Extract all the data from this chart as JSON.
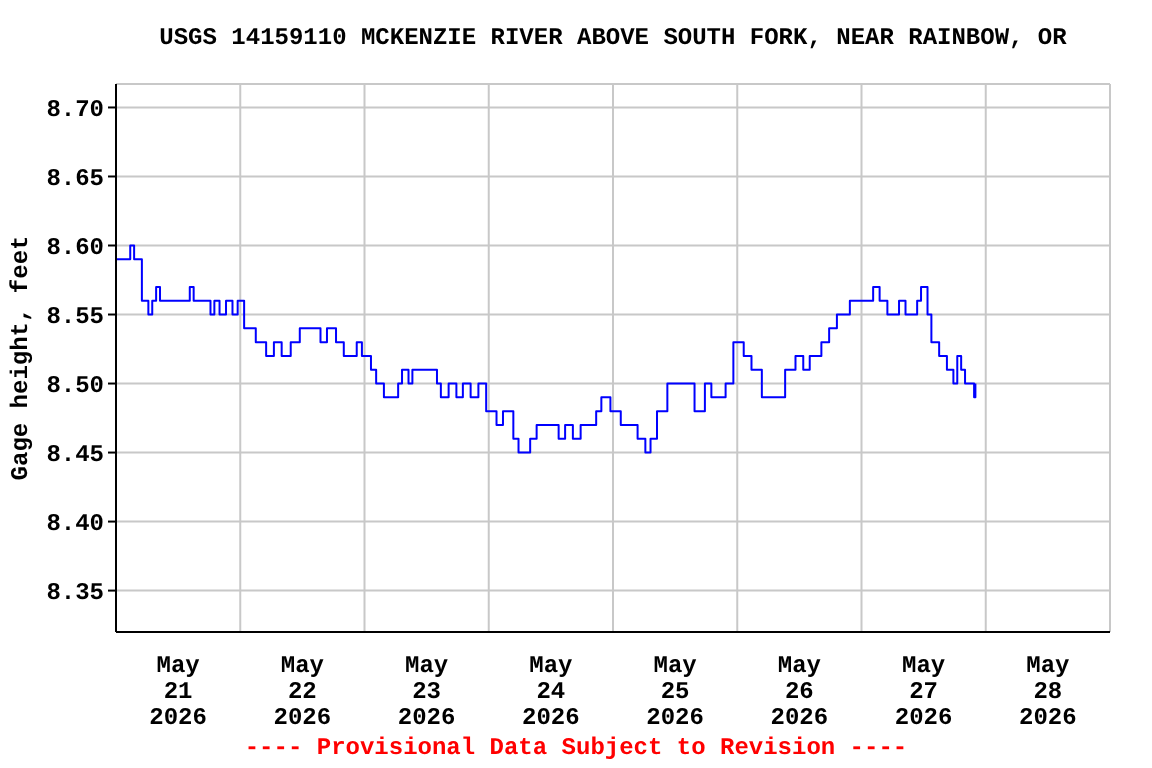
{
  "chart_data": {
    "type": "step",
    "title": "USGS 14159110 MCKENZIE RIVER ABOVE SOUTH FORK, NEAR RAINBOW, OR",
    "ylabel": "Gage height, feet",
    "annotations": [
      "---- Provisional Data Subject to Revision ----"
    ],
    "x": [
      "2026-05-21T00:00",
      "2026-05-21T02:45",
      "2026-05-21T03:30",
      "2026-05-21T05:00",
      "2026-05-21T06:15",
      "2026-05-21T07:00",
      "2026-05-21T07:45",
      "2026-05-21T08:30",
      "2026-05-21T14:15",
      "2026-05-21T15:00",
      "2026-05-21T18:15",
      "2026-05-21T19:00",
      "2026-05-21T20:00",
      "2026-05-21T21:15",
      "2026-05-21T22:30",
      "2026-05-21T23:30",
      "2026-05-22T00:45",
      "2026-05-22T03:00",
      "2026-05-22T05:00",
      "2026-05-22T06:30",
      "2026-05-22T08:00",
      "2026-05-22T09:45",
      "2026-05-22T11:30",
      "2026-05-22T15:30",
      "2026-05-22T16:45",
      "2026-05-22T18:30",
      "2026-05-22T20:00",
      "2026-05-22T22:30",
      "2026-05-22T23:30",
      "2026-05-23T01:15",
      "2026-05-23T02:15",
      "2026-05-23T03:45",
      "2026-05-23T06:30",
      "2026-05-23T07:15",
      "2026-05-23T08:30",
      "2026-05-23T09:15",
      "2026-05-23T14:00",
      "2026-05-23T14:45",
      "2026-05-23T16:15",
      "2026-05-23T17:45",
      "2026-05-23T19:00",
      "2026-05-23T20:30",
      "2026-05-23T22:00",
      "2026-05-23T23:30",
      "2026-05-24T01:30",
      "2026-05-24T02:45",
      "2026-05-24T04:45",
      "2026-05-24T05:45",
      "2026-05-24T08:00",
      "2026-05-24T09:15",
      "2026-05-24T13:30",
      "2026-05-24T14:45",
      "2026-05-24T16:15",
      "2026-05-24T17:45",
      "2026-05-24T20:45",
      "2026-05-24T21:45",
      "2026-05-24T23:30",
      "2026-05-25T01:30",
      "2026-05-25T04:45",
      "2026-05-25T06:15",
      "2026-05-25T07:15",
      "2026-05-25T08:30",
      "2026-05-25T10:30",
      "2026-05-25T15:45",
      "2026-05-25T17:45",
      "2026-05-25T19:00",
      "2026-05-25T21:45",
      "2026-05-25T23:15",
      "2026-05-26T01:15",
      "2026-05-26T02:45",
      "2026-05-26T04:45",
      "2026-05-26T06:15",
      "2026-05-26T09:15",
      "2026-05-26T11:15",
      "2026-05-26T12:45",
      "2026-05-26T14:00",
      "2026-05-26T16:15",
      "2026-05-26T17:45",
      "2026-05-26T19:15",
      "2026-05-26T21:45",
      "2026-05-27T02:15",
      "2026-05-27T03:30",
      "2026-05-27T05:00",
      "2026-05-27T07:15",
      "2026-05-27T08:30",
      "2026-05-27T10:45",
      "2026-05-27T11:30",
      "2026-05-27T12:45",
      "2026-05-27T13:30",
      "2026-05-27T15:00",
      "2026-05-27T16:30",
      "2026-05-27T17:45",
      "2026-05-27T18:30",
      "2026-05-27T19:15",
      "2026-05-27T20:00",
      "2026-05-27T21:45",
      "2026-05-27T22:00"
    ],
    "series": [
      {
        "color": "#0000ff",
        "values": [
          8.59,
          8.6,
          8.59,
          8.56,
          8.55,
          8.56,
          8.57,
          8.56,
          8.57,
          8.56,
          8.55,
          8.56,
          8.55,
          8.56,
          8.55,
          8.56,
          8.54,
          8.53,
          8.52,
          8.53,
          8.52,
          8.53,
          8.54,
          8.53,
          8.54,
          8.53,
          8.52,
          8.53,
          8.52,
          8.51,
          8.5,
          8.49,
          8.5,
          8.51,
          8.5,
          8.51,
          8.5,
          8.49,
          8.5,
          8.49,
          8.5,
          8.49,
          8.5,
          8.48,
          8.47,
          8.48,
          8.46,
          8.45,
          8.46,
          8.47,
          8.46,
          8.47,
          8.46,
          8.47,
          8.48,
          8.49,
          8.48,
          8.47,
          8.46,
          8.45,
          8.46,
          8.48,
          8.5,
          8.48,
          8.5,
          8.49,
          8.5,
          8.53,
          8.52,
          8.51,
          8.49,
          8.49,
          8.51,
          8.52,
          8.51,
          8.52,
          8.53,
          8.54,
          8.55,
          8.56,
          8.57,
          8.56,
          8.55,
          8.56,
          8.55,
          8.56,
          8.57,
          8.55,
          8.53,
          8.52,
          8.51,
          8.5,
          8.52,
          8.51,
          8.5,
          8.49,
          8.5
        ]
      }
    ],
    "xlim": [
      "2026-05-21",
      "2026-05-29"
    ],
    "xticks": [
      {
        "value": "2026-05-21",
        "label": null
      },
      {
        "value": "2026-05-21T12:00",
        "label": "May 21 2026"
      },
      {
        "value": "2026-05-22",
        "label": null
      },
      {
        "value": "2026-05-22T12:00",
        "label": "May 22 2026"
      },
      {
        "value": "2026-05-23",
        "label": null
      },
      {
        "value": "2026-05-23T12:00",
        "label": "May 23 2026"
      },
      {
        "value": "2026-05-24",
        "label": null
      },
      {
        "value": "2026-05-24T12:00",
        "label": "May 24 2026"
      },
      {
        "value": "2026-05-25",
        "label": null
      },
      {
        "value": "2026-05-25T12:00",
        "label": "May 25 2026"
      },
      {
        "value": "2026-05-26",
        "label": null
      },
      {
        "value": "2026-05-26T12:00",
        "label": "May 26 2026"
      },
      {
        "value": "2026-05-27",
        "label": null
      },
      {
        "value": "2026-05-27T12:00",
        "label": "May 27 2026"
      },
      {
        "value": "2026-05-28",
        "label": null
      },
      {
        "value": "2026-05-28T12:00",
        "label": "May 28 2026"
      },
      {
        "value": "2026-05-29",
        "label": null
      }
    ],
    "ylim": [
      8.32,
      8.717
    ],
    "yticks": [
      8.35,
      {
        "value": 8.4,
        "label": "8.40"
      },
      8.45,
      {
        "value": 8.5,
        "label": "8.50"
      },
      8.55,
      {
        "value": 8.6,
        "label": "8.60"
      },
      8.65,
      {
        "value": 8.7,
        "label": "8.70"
      }
    ],
    "grid": true,
    "line_style": "solid",
    "marker": "none"
  }
}
